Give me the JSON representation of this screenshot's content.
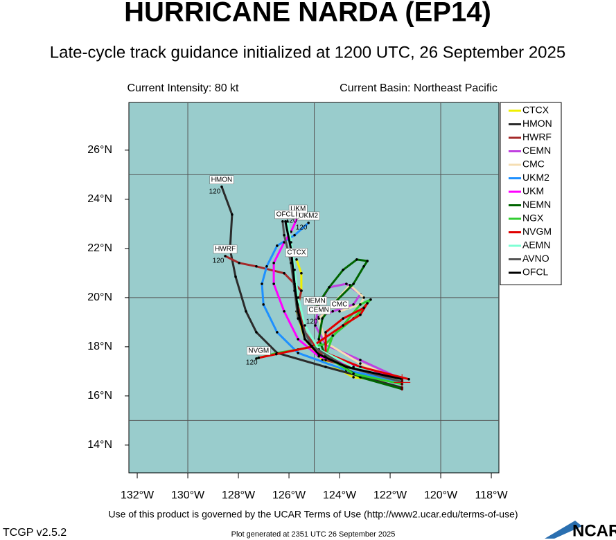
{
  "chart_data": {
    "type": "line",
    "title": "HURRICANE NARDA (EP14)",
    "subtitle": "Late-cycle track guidance initialized at 1200 UTC, 26 September 2025",
    "intensity": "Current Intensity: 80 kt",
    "basin": "Current Basin: Northeast Pacific",
    "xlim": [
      -132.33,
      -117.7
    ],
    "ylim": [
      12.87,
      27.94
    ],
    "xticks": [
      {
        "value": -132,
        "label": "132°W"
      },
      {
        "value": -130,
        "label": "130°W"
      },
      {
        "value": -128,
        "label": "128°W"
      },
      {
        "value": -126,
        "label": "126°W"
      },
      {
        "value": -124,
        "label": "124°W"
      },
      {
        "value": -122,
        "label": "122°W"
      },
      {
        "value": -120,
        "label": "120°W"
      },
      {
        "value": -118,
        "label": "118°W"
      }
    ],
    "yticks": [
      {
        "value": 14,
        "label": "14°N"
      },
      {
        "value": 16,
        "label": "16°N"
      },
      {
        "value": 18,
        "label": "18°N"
      },
      {
        "value": 20,
        "label": "20°N"
      },
      {
        "value": 22,
        "label": "22°N"
      },
      {
        "value": 24,
        "label": "24°N"
      },
      {
        "value": 26,
        "label": "26°N"
      }
    ],
    "xgrid": [
      -130,
      -125,
      -120
    ],
    "ygrid": [
      15,
      20,
      25
    ],
    "background": "#99cccc",
    "legend": "right",
    "series": [
      {
        "name": "CTCX",
        "color": "#f0f000",
        "end_box": true,
        "x": [
          -121.53,
          -123.45,
          -124.68,
          -125.37,
          -125.7,
          -125.51,
          -125.51,
          -125.7
        ],
        "values": [
          16.55,
          16.76,
          17.46,
          18.31,
          19.44,
          20.28,
          20.99,
          21.55
        ]
      },
      {
        "name": "HMON",
        "color": "#2b2b2b",
        "end_box": true,
        "end_hour": "120",
        "x": [
          -121.53,
          -124.55,
          -126.47,
          -127.29,
          -127.7,
          -128.11,
          -128.33,
          -128.25,
          -128.66
        ],
        "values": [
          16.34,
          17.18,
          17.75,
          18.59,
          19.44,
          20.85,
          21.97,
          23.38,
          24.51
        ]
      },
      {
        "name": "HWRF",
        "color": "#a52a2a",
        "end_box": true,
        "end_hour": "120",
        "x": [
          -121.53,
          -124.55,
          -125.37,
          -125.64,
          -125.51,
          -126.19,
          -127.29,
          -127.97,
          -128.52
        ],
        "values": [
          16.62,
          17.46,
          18.59,
          19.72,
          20.28,
          20.99,
          21.27,
          21.41,
          21.69
        ]
      },
      {
        "name": "CEMN",
        "color": "#c040e0",
        "end_box": true,
        "end_hour": "120",
        "x": [
          -121.53,
          -123.18,
          -124.55,
          -124.96,
          -124.82,
          -124.41,
          -123.73,
          -123.18,
          -123.45,
          -124.27,
          -124.82
        ],
        "values": [
          16.68,
          17.46,
          18.08,
          18.87,
          19.72,
          20.42,
          20.56,
          20.14,
          19.72,
          19.44,
          19.21
        ]
      },
      {
        "name": "CMC",
        "color": "#f5deb3",
        "end_box": true,
        "x": [
          -121.53,
          -123.18,
          -124.55,
          -124.82,
          -124.27,
          -123.59,
          -123.04,
          -123.18,
          -124.0
        ],
        "values": [
          16.62,
          17.32,
          18.17,
          19.15,
          19.72,
          20.51,
          20.0,
          19.72,
          19.44
        ]
      },
      {
        "name": "UKM2",
        "color": "#1e90ff",
        "end_box": true,
        "end_hour": "120",
        "x": [
          -121.53,
          -123.73,
          -125.64,
          -126.47,
          -127.01,
          -127.07,
          -126.88,
          -126.47,
          -125.78,
          -125.23
        ],
        "values": [
          16.57,
          17.04,
          17.75,
          18.59,
          19.72,
          20.56,
          21.27,
          22.11,
          22.54,
          23.04
        ]
      },
      {
        "name": "UKM",
        "color": "#ff00ff",
        "end_box": true,
        "end_hour": "120",
        "x": [
          -121.53,
          -123.18,
          -124.82,
          -125.64,
          -126.19,
          -126.6,
          -126.6,
          -126.19,
          -125.92,
          -125.64
        ],
        "values": [
          16.68,
          17.18,
          17.61,
          18.31,
          19.44,
          20.56,
          21.41,
          22.25,
          22.68,
          23.32
        ]
      },
      {
        "name": "NEMN",
        "color": "#006400",
        "end_box": true,
        "x": [
          -121.53,
          -123.18,
          -124.55,
          -124.82,
          -124.68,
          -124.27,
          -123.45,
          -123.04,
          -122.9,
          -123.32,
          -123.86,
          -124.41,
          -124.96
        ],
        "values": [
          16.28,
          16.76,
          17.61,
          18.31,
          19.15,
          19.72,
          20.56,
          21.27,
          21.49,
          21.55,
          21.13,
          20.42,
          19.58
        ]
      },
      {
        "name": "NGX",
        "color": "#32cd32",
        "x": [
          -121.53,
          -123.45,
          -124.55,
          -124.27,
          -123.45,
          -122.77,
          -123.18,
          -123.86,
          -124.55,
          -125.64,
          -126.47,
          -127.29
        ],
        "values": [
          16.48,
          16.9,
          17.61,
          18.45,
          19.15,
          19.92,
          19.72,
          18.87,
          18.11,
          17.89,
          17.75,
          17.52
        ]
      },
      {
        "name": "NVGM",
        "color": "#e00000",
        "end_box": true,
        "end_hour": "120",
        "x": [
          -121.26,
          -123.18,
          -124.55,
          -124.55,
          -123.86,
          -123.04,
          -122.9,
          -123.18,
          -123.86,
          -125.1,
          -126.5,
          -127.2
        ],
        "values": [
          16.68,
          17.18,
          17.75,
          18.59,
          19.15,
          19.58,
          19.77,
          19.3,
          18.87,
          18.0,
          17.7,
          17.55
        ]
      },
      {
        "name": "AEMN",
        "color": "#7fffd4",
        "end_box": true,
        "x": [
          -121.53,
          -123.45,
          -124.82,
          -125.37,
          -125.64,
          -125.78,
          -125.92,
          -126.06
        ],
        "values": [
          16.62,
          17.18,
          17.89,
          18.87,
          20.0,
          21.13,
          22.25,
          23.1
        ]
      },
      {
        "name": "AVNO",
        "color": "#555555",
        "x": [
          -121.53,
          -123.73,
          -125.1,
          -125.64,
          -125.78,
          -125.92,
          -126.19,
          -126.25
        ],
        "values": [
          16.57,
          17.18,
          18.03,
          19.15,
          20.28,
          21.41,
          22.54,
          23.1
        ]
      },
      {
        "name": "OFCL",
        "color": "#000000",
        "end_box": true,
        "x": [
          -121.53,
          -123.73,
          -124.82,
          -125.37,
          -125.64,
          -125.78,
          -125.92,
          -126.14
        ],
        "values": [
          16.68,
          17.18,
          17.69,
          18.31,
          19.44,
          20.56,
          21.97,
          23.1
        ]
      }
    ]
  },
  "footer": {
    "terms": "Use of this product is governed by the UCAR Terms of Use (http://www2.ucar.edu/terms-of-use)",
    "version": "TCGP v2.5.2",
    "generated": "Plot generated at 2351 UTC   26 September 2025",
    "logo": "NCAR"
  }
}
